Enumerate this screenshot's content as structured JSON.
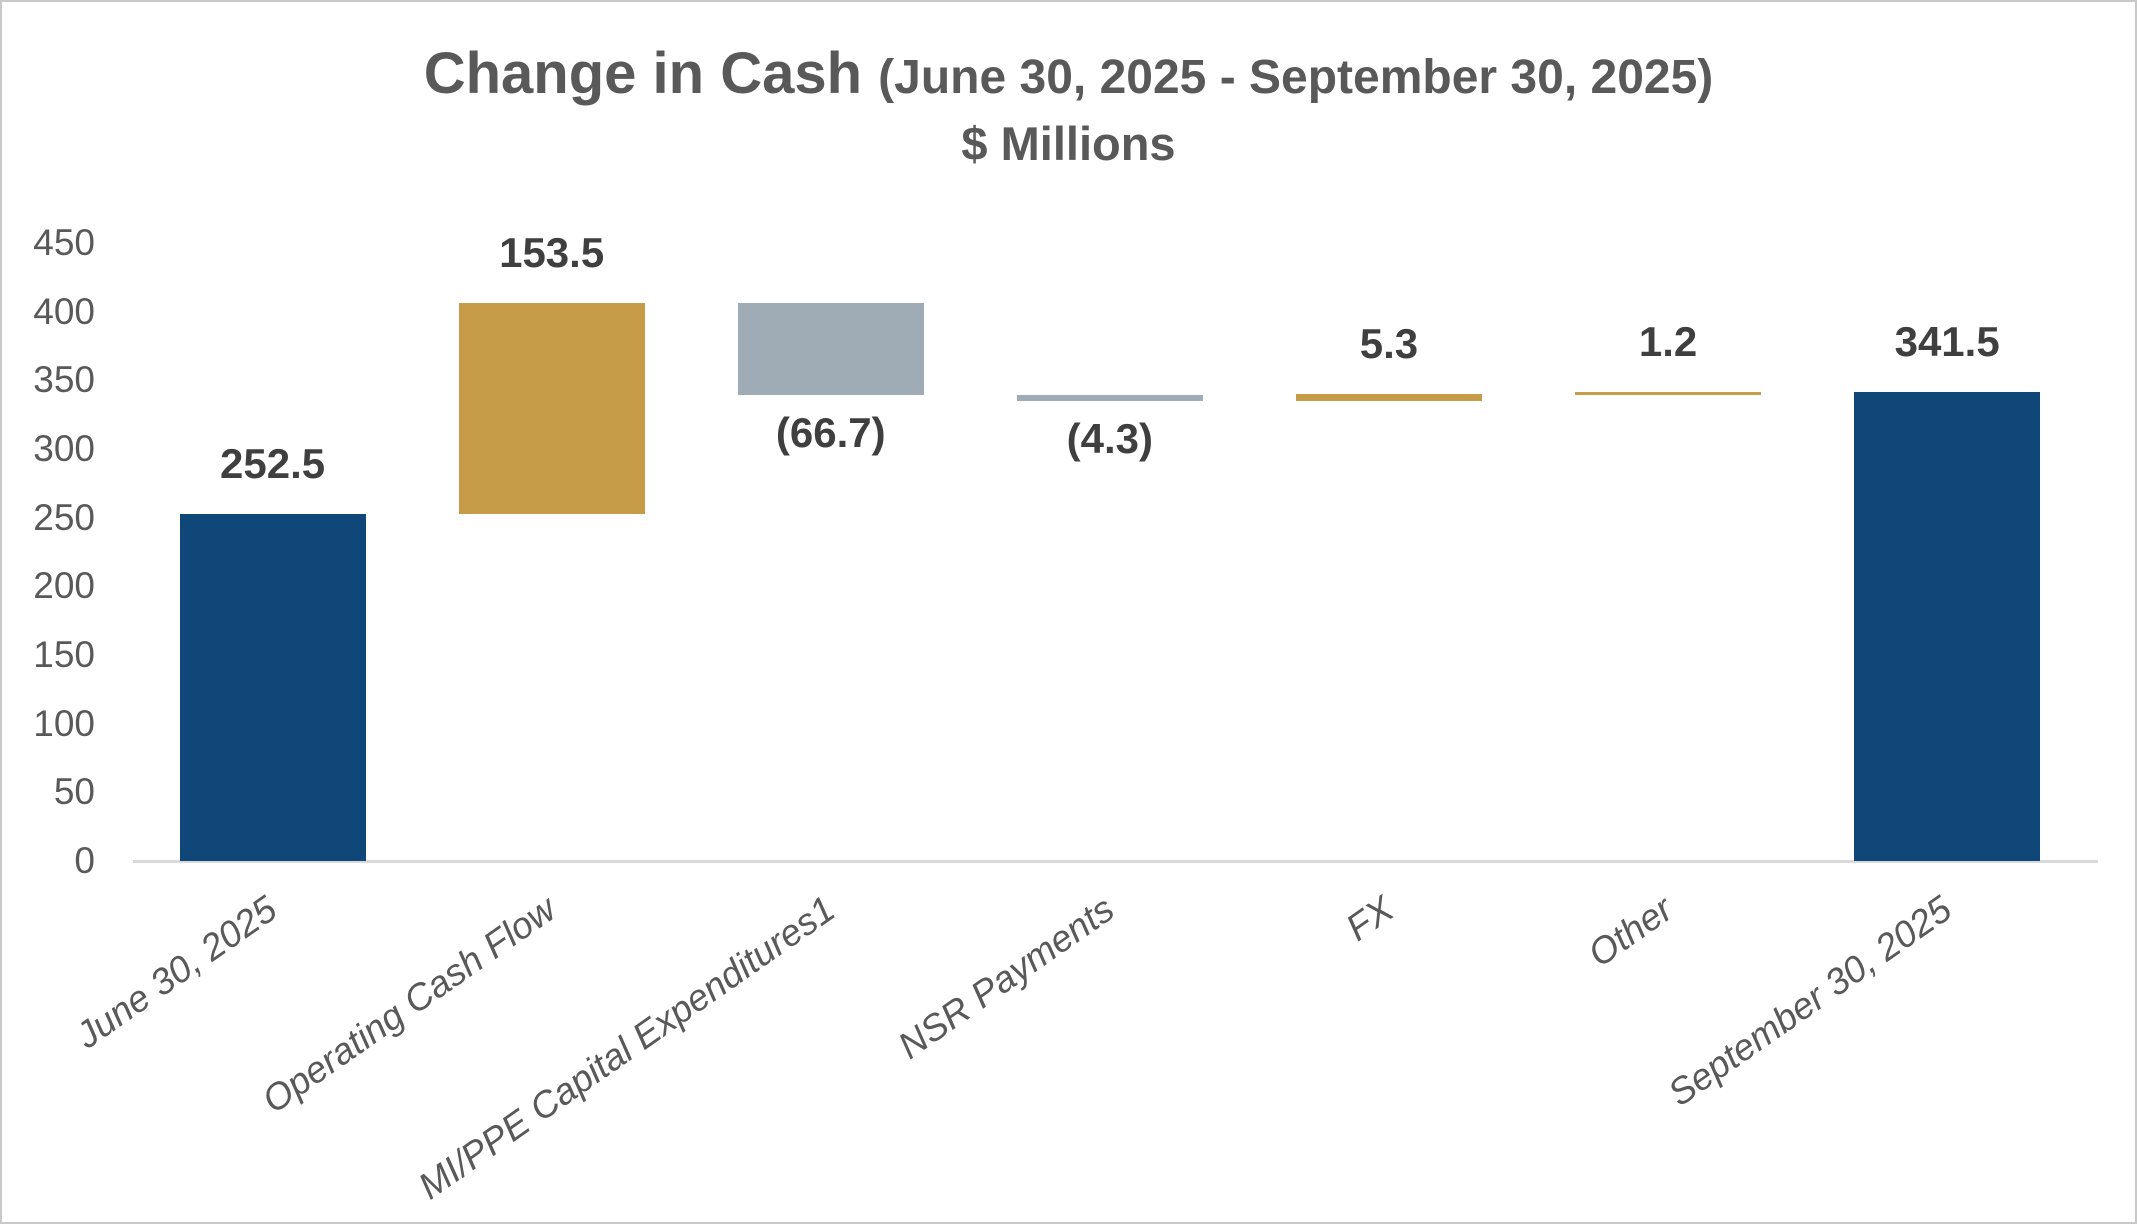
{
  "chart_data": {
    "type": "bar",
    "subtype": "waterfall",
    "title": {
      "main": "Change in Cash",
      "paren": "(June 30, 2025 - September 30, 2025)",
      "full": "Change in Cash (June 30, 2025 - September 30, 2025)",
      "subtitle": "$ Millions"
    },
    "categories": [
      "June 30, 2025",
      "Operating Cash Flow",
      "MI/PPE Capital Expenditures1",
      "NSR Payments",
      "FX",
      "Other",
      "September 30, 2025"
    ],
    "values": [
      252.5,
      153.5,
      -66.7,
      -4.3,
      5.3,
      1.2,
      341.5
    ],
    "data_labels": [
      "252.5",
      "153.5",
      "(66.7)",
      "(4.3)",
      "5.3",
      "1.2",
      "341.5"
    ],
    "bar_kinds": [
      "total",
      "increase",
      "decrease",
      "decrease",
      "increase",
      "increase",
      "total"
    ],
    "cumulative_start": [
      0,
      252.5,
      339.3,
      335.0,
      335.0,
      340.3,
      0
    ],
    "cumulative_end": [
      252.5,
      406.0,
      406.0,
      339.3,
      340.3,
      341.5,
      341.5
    ],
    "ylim": [
      0,
      450
    ],
    "yticks": [
      0,
      50,
      100,
      150,
      200,
      250,
      300,
      350,
      400,
      450
    ],
    "grid": false,
    "legend": false,
    "x_label_rotation_deg": -35,
    "x_labels_italic": true,
    "colors": {
      "total": "#0E4778",
      "increase": "#C79C48",
      "decrease": "#9FACB5",
      "data_label": "#3F3F3F",
      "axis_text": "#595959",
      "title_text": "#595959",
      "axis_line": "#D9D9D9"
    }
  }
}
